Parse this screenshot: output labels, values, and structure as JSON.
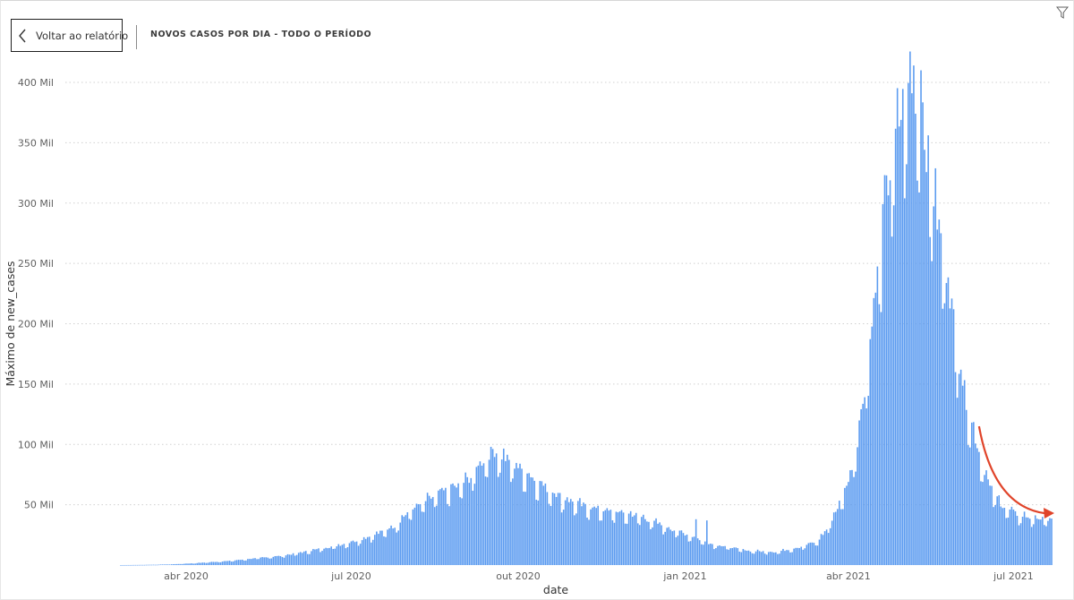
{
  "header": {
    "back_button_label": "Voltar ao relatório",
    "back_icon": "chevron-left-icon",
    "page_title": "NOVOS CASOS POR DIA - TODO O PERÍODO",
    "filter_icon": "filter-funnel-icon"
  },
  "colors": {
    "bar": "#5b9bf0",
    "annotation_arrow": "#e0442a",
    "gridline": "#d0d0d0"
  },
  "chart_data": {
    "type": "bar",
    "title": "",
    "xlabel": "date",
    "ylabel": "Máximo de new_cases",
    "grid": "horizontal dotted",
    "legend": "none",
    "x_range": [
      "2020-02-25",
      "2021-07-22"
    ],
    "ylim": [
      0,
      400000
    ],
    "y_ticks": [
      {
        "value": 50000,
        "label": "50 Mil"
      },
      {
        "value": 100000,
        "label": "100 Mil"
      },
      {
        "value": 150000,
        "label": "150 Mil"
      },
      {
        "value": 200000,
        "label": "200 Mil"
      },
      {
        "value": 250000,
        "label": "250 Mil"
      },
      {
        "value": 300000,
        "label": "300 Mil"
      },
      {
        "value": 350000,
        "label": "350 Mil"
      },
      {
        "value": 400000,
        "label": "400 Mil"
      }
    ],
    "x_ticks": [
      {
        "date": "2020-04-01",
        "label": "abr 2020"
      },
      {
        "date": "2020-07-01",
        "label": "jul 2020"
      },
      {
        "date": "2020-10-01",
        "label": "out 2020"
      },
      {
        "date": "2021-01-01",
        "label": "jan 2021"
      },
      {
        "date": "2021-04-01",
        "label": "abr 2021"
      },
      {
        "date": "2021-07-01",
        "label": "jul 2021"
      }
    ],
    "series": [
      {
        "values_description_note_removed": null,
        "points": [
          [
            "2020-02-25",
            0
          ],
          [
            "2020-03-05",
            100
          ],
          [
            "2020-03-15",
            300
          ],
          [
            "2020-03-25",
            700
          ],
          [
            "2020-04-05",
            1500
          ],
          [
            "2020-04-15",
            2500
          ],
          [
            "2020-04-25",
            3500
          ],
          [
            "2020-05-05",
            5000
          ],
          [
            "2020-05-15",
            6500
          ],
          [
            "2020-05-25",
            8000
          ],
          [
            "2020-06-05",
            11000
          ],
          [
            "2020-06-15",
            14000
          ],
          [
            "2020-06-25",
            17000
          ],
          [
            "2020-07-05",
            21000
          ],
          [
            "2020-07-15",
            26000
          ],
          [
            "2020-07-25",
            33000
          ],
          [
            "2020-08-01",
            44000
          ],
          [
            "2020-08-10",
            53000
          ],
          [
            "2020-08-20",
            61000
          ],
          [
            "2020-08-30",
            67000
          ],
          [
            "2020-09-05",
            74000
          ],
          [
            "2020-09-10",
            85000
          ],
          [
            "2020-09-17",
            97000
          ],
          [
            "2020-09-25",
            88000
          ],
          [
            "2020-10-05",
            78000
          ],
          [
            "2020-10-15",
            66000
          ],
          [
            "2020-10-25",
            57000
          ],
          [
            "2020-11-05",
            50000
          ],
          [
            "2020-11-20",
            45000
          ],
          [
            "2020-12-05",
            42000
          ],
          [
            "2020-12-15",
            36000
          ],
          [
            "2020-12-25",
            30000
          ],
          [
            "2021-01-05",
            24000
          ],
          [
            "2021-01-15",
            18000
          ],
          [
            "2021-01-25",
            15000
          ],
          [
            "2021-02-05",
            12000
          ],
          [
            "2021-02-20",
            11000
          ],
          [
            "2021-03-05",
            15000
          ],
          [
            "2021-03-15",
            20000
          ],
          [
            "2021-03-20",
            30000
          ],
          [
            "2021-03-25",
            45000
          ],
          [
            "2021-04-01",
            70000
          ],
          [
            "2021-04-06",
            105000
          ],
          [
            "2021-04-11",
            160000
          ],
          [
            "2021-04-16",
            230000
          ],
          [
            "2021-04-21",
            300000
          ],
          [
            "2021-04-26",
            350000
          ],
          [
            "2021-05-01",
            385000
          ],
          [
            "2021-05-05",
            405000
          ],
          [
            "2021-05-09",
            395000
          ],
          [
            "2021-05-14",
            350000
          ],
          [
            "2021-05-20",
            290000
          ],
          [
            "2021-05-26",
            240000
          ],
          [
            "2021-06-01",
            170000
          ],
          [
            "2021-06-06",
            130000
          ],
          [
            "2021-06-12",
            95000
          ],
          [
            "2021-06-18",
            65000
          ],
          [
            "2021-06-25",
            50000
          ],
          [
            "2021-07-02",
            43000
          ],
          [
            "2021-07-10",
            40000
          ],
          [
            "2021-07-22",
            38000
          ]
        ]
      }
    ],
    "spikes": [
      [
        "2021-01-07",
        38000
      ],
      [
        "2021-01-13",
        37000
      ],
      [
        "2020-09-16",
        98000
      ],
      [
        "2021-05-07",
        414000
      ],
      [
        "2021-05-11",
        410000
      ]
    ],
    "annotation": {
      "type": "arrow",
      "from": [
        "2021-06-12",
        115000
      ],
      "to": [
        "2021-07-22",
        43000
      ]
    }
  }
}
